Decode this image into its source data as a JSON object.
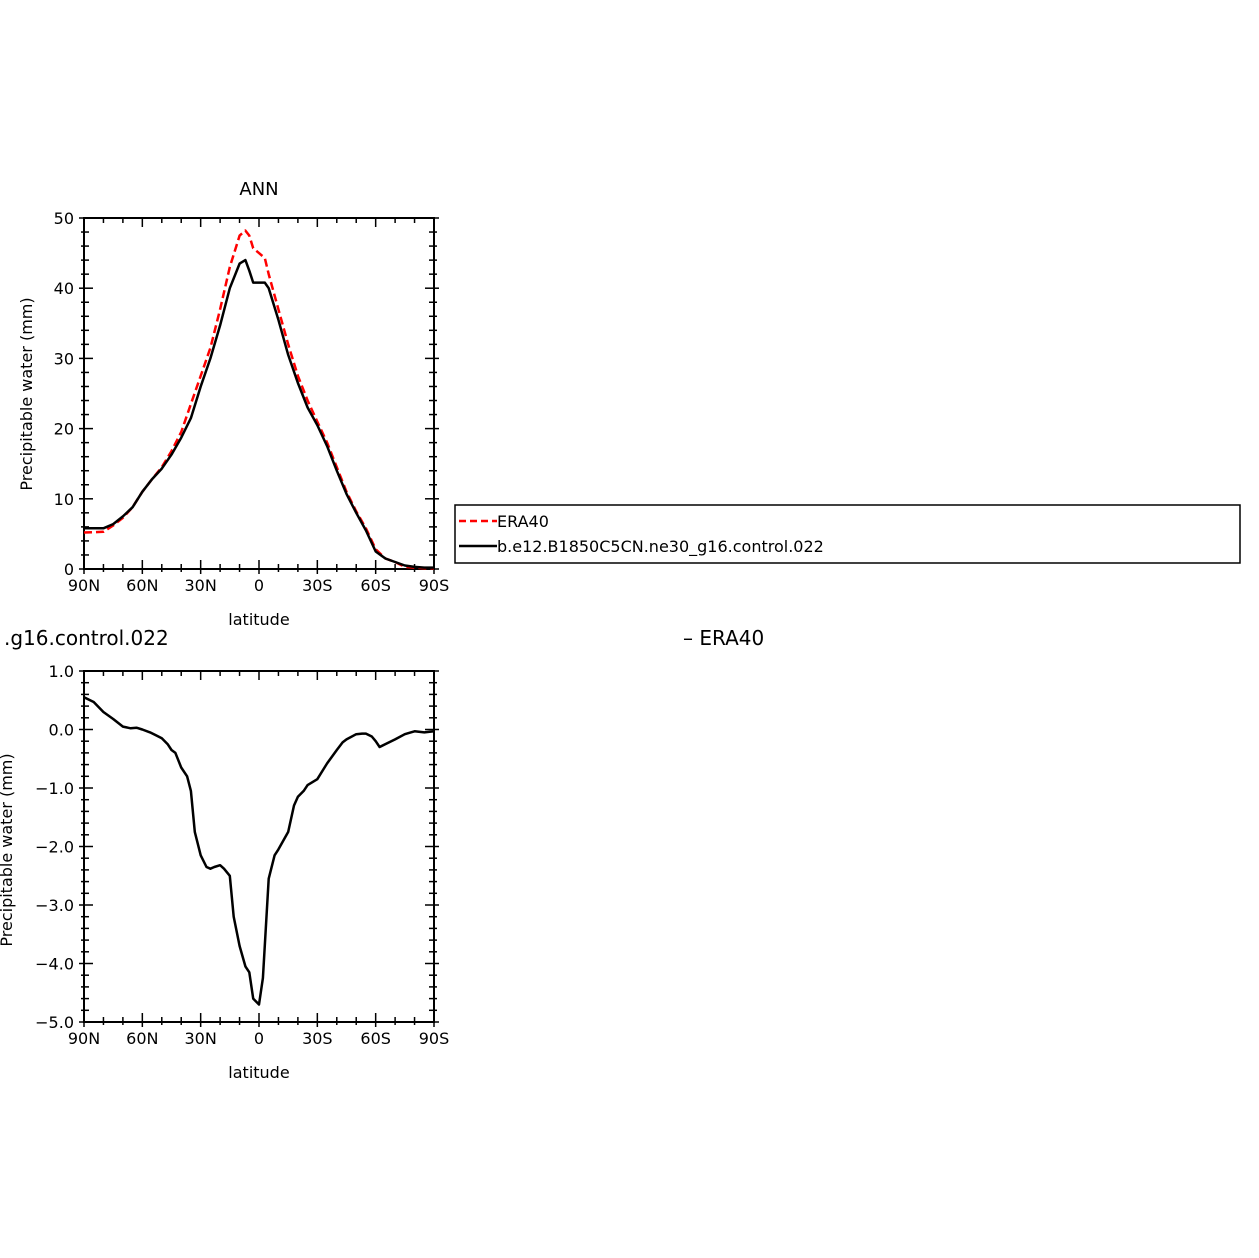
{
  "chart_data": [
    {
      "type": "line",
      "title": "ANN",
      "xlabel": "latitude",
      "ylabel": "Precipitable water (mm)",
      "xlim": [
        90,
        -90
      ],
      "ylim": [
        0,
        50
      ],
      "x_ticks": [
        90,
        60,
        30,
        0,
        -30,
        -60,
        -90
      ],
      "x_tick_labels": [
        "90N",
        "60N",
        "30N",
        "0",
        "30S",
        "60S",
        "90S"
      ],
      "y_ticks": [
        0,
        10,
        20,
        30,
        40,
        50
      ],
      "y_tick_labels": [
        "0",
        "10",
        "20",
        "30",
        "40",
        "50"
      ],
      "grid": false,
      "legend": "right",
      "series": [
        {
          "name": "ERA40",
          "color": "#ff0000",
          "dash": "dashed",
          "x": [
            90,
            80,
            75,
            70,
            65,
            60,
            55,
            50,
            45,
            40,
            35,
            30,
            25,
            20,
            15,
            10,
            7,
            5,
            3,
            0,
            -3,
            -5,
            -10,
            -15,
            -20,
            -25,
            -30,
            -35,
            -40,
            -45,
            -50,
            -55,
            -60,
            -65,
            -70,
            -75,
            -80,
            -85,
            -90
          ],
          "values": [
            5.2,
            5.3,
            6.2,
            7.3,
            8.8,
            11.0,
            12.8,
            14.5,
            16.8,
            19.5,
            23.5,
            27.5,
            31.5,
            37.0,
            43.0,
            47.5,
            48.2,
            47.5,
            45.7,
            45.0,
            44.3,
            42.0,
            37.0,
            32.0,
            27.5,
            24.0,
            21.0,
            18.0,
            14.5,
            11.0,
            8.2,
            5.8,
            2.8,
            1.5,
            1.0,
            0.3,
            0.2,
            0.1,
            0.1
          ],
          "note_x_order": "same"
        },
        {
          "name": "b.e12.B1850C5CN.ne30_g16.control.022",
          "color": "#000000",
          "dash": "solid",
          "x": [
            90,
            80,
            75,
            70,
            65,
            60,
            55,
            50,
            45,
            40,
            35,
            30,
            25,
            20,
            15,
            10,
            7,
            5,
            3,
            0,
            -3,
            -5,
            -10,
            -15,
            -20,
            -25,
            -30,
            -35,
            -40,
            -45,
            -50,
            -55,
            -60,
            -65,
            -70,
            -75,
            -80,
            -85,
            -90
          ],
          "values": [
            5.8,
            5.8,
            6.4,
            7.5,
            8.8,
            11.0,
            12.8,
            14.3,
            16.3,
            18.7,
            21.5,
            26.0,
            30.0,
            34.7,
            40.0,
            43.5,
            44.0,
            42.5,
            40.8,
            40.8,
            40.8,
            40.0,
            35.5,
            30.5,
            26.5,
            23.0,
            20.5,
            17.5,
            14.0,
            10.7,
            8.0,
            5.5,
            2.5,
            1.5,
            1.0,
            0.5,
            0.3,
            0.2,
            0.2
          ]
        }
      ]
    },
    {
      "type": "line",
      "title_fragment_left": ".g16.control.022",
      "title_fragment_right": "– ERA40",
      "xlabel": "latitude",
      "ylabel_fragment": "Precipitable water (mm)",
      "xlim": [
        90,
        -90
      ],
      "ylim": [
        -5.0,
        1.0
      ],
      "x_ticks": [
        90,
        60,
        30,
        0,
        -30,
        -60,
        -90
      ],
      "x_tick_labels": [
        "90N",
        "60N",
        "30N",
        "0",
        "30S",
        "60S",
        "90S"
      ],
      "y_ticks": [
        1.0,
        0.0,
        -1.0,
        -2.0,
        -3.0,
        -4.0,
        -5.0
      ],
      "y_tick_labels": [
        "1.0",
        "0.0",
        "−1.0",
        "−2.0",
        "−3.0",
        "−4.0",
        "−5.0"
      ],
      "grid": false,
      "series": [
        {
          "color": "#000000",
          "x": [
            90,
            85,
            80,
            75,
            70,
            66,
            63,
            60,
            56,
            53,
            50,
            47,
            45,
            43,
            40,
            37,
            35,
            33,
            30,
            27,
            25,
            23,
            20,
            18,
            15,
            13,
            10,
            7,
            5,
            3,
            0,
            -2,
            -5,
            -8,
            -10,
            -15,
            -18,
            -20,
            -23,
            -25,
            -30,
            -35,
            -40,
            -43,
            -45,
            -50,
            -53,
            -55,
            -58,
            -60,
            -62,
            -65,
            -70,
            -75,
            -78,
            -80,
            -85,
            -90
          ],
          "values": [
            0.55,
            0.47,
            0.3,
            0.18,
            0.05,
            0.02,
            0.03,
            0.0,
            -0.05,
            -0.1,
            -0.15,
            -0.25,
            -0.35,
            -0.4,
            -0.65,
            -0.8,
            -1.05,
            -1.75,
            -2.15,
            -2.35,
            -2.38,
            -2.35,
            -2.32,
            -2.38,
            -2.5,
            -3.2,
            -3.7,
            -4.05,
            -4.15,
            -4.6,
            -4.7,
            -4.25,
            -2.55,
            -2.15,
            -2.05,
            -1.75,
            -1.3,
            -1.15,
            -1.05,
            -0.95,
            -0.85,
            -0.58,
            -0.35,
            -0.22,
            -0.17,
            -0.08,
            -0.07,
            -0.07,
            -0.12,
            -0.2,
            -0.3,
            -0.25,
            -0.17,
            -0.08,
            -0.05,
            -0.03,
            -0.05,
            -0.03
          ]
        }
      ]
    }
  ],
  "legend": {
    "entries": [
      {
        "label": "ERA40",
        "color": "#ff0000",
        "dash": "dashed"
      },
      {
        "label": "b.e12.B1850C5CN.ne30_g16.control.022",
        "color": "#000000",
        "dash": "solid"
      }
    ]
  }
}
